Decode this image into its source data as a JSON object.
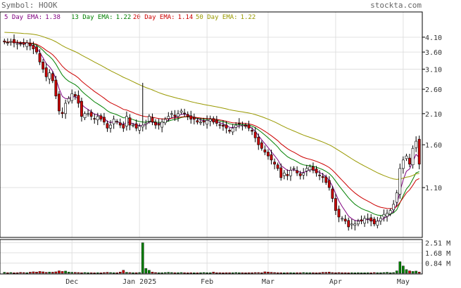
{
  "header": {
    "symbol_label": "Symbol: HOOK",
    "brand": "stockta.com"
  },
  "legend": [
    {
      "label": "5 Day EMA:",
      "value": "1.38",
      "color": "#800080"
    },
    {
      "label": "13 Day EMA:",
      "value": "1.22",
      "color": "#008000"
    },
    {
      "label": "20 Day EMA:",
      "value": "1.14",
      "color": "#cc0000"
    },
    {
      "label": "50 Day EMA:",
      "value": "1.22",
      "color": "#999900"
    }
  ],
  "colors": {
    "up_candle": "#ffffff",
    "down_candle": "#cc0000",
    "candle_outline": "#000000",
    "volume_up": "#008000",
    "volume_down": "#cc0000",
    "grid": "#e0e0e0",
    "border": "#000000"
  },
  "chart_data": {
    "type": "candlestick",
    "price_axis": {
      "scale": "log",
      "ticks": [
        4.1,
        3.6,
        3.1,
        2.6,
        2.1,
        1.6,
        1.1
      ],
      "tick_labels": [
        "4.10",
        "3.60",
        "3.10",
        "2.60",
        "2.10",
        "1.60",
        "1.10"
      ],
      "range": [
        0.72,
        4.55
      ]
    },
    "volume_axis": {
      "ticks": [
        2.51,
        1.68,
        0.84
      ],
      "tick_labels": [
        "2.51 M",
        "1.68 M",
        "0.84 M"
      ],
      "range": [
        0,
        2.6
      ]
    },
    "x_labels": [
      {
        "label": "Dec",
        "index": 21
      },
      {
        "label": "Jan 2025",
        "index": 42
      },
      {
        "label": "Feb",
        "index": 63
      },
      {
        "label": "Mar",
        "index": 82
      },
      {
        "label": "Apr",
        "index": 103
      },
      {
        "label": "May",
        "index": 124
      }
    ],
    "num_days": 130,
    "closes": [
      3.93,
      3.91,
      3.95,
      3.9,
      3.88,
      3.86,
      3.85,
      3.9,
      3.8,
      3.7,
      3.6,
      3.3,
      3.1,
      2.9,
      3.0,
      2.8,
      2.45,
      2.15,
      2.1,
      2.3,
      2.4,
      2.5,
      2.45,
      2.3,
      2.05,
      2.1,
      2.1,
      2.05,
      2.0,
      2.05,
      2.0,
      1.95,
      1.85,
      1.9,
      2.0,
      1.95,
      1.9,
      1.85,
      2.05,
      1.9,
      1.9,
      1.85,
      1.88,
      1.9,
      1.93,
      2.05,
      1.95,
      1.9,
      1.9,
      1.95,
      2.0,
      2.05,
      2.1,
      2.05,
      2.1,
      2.15,
      2.1,
      2.05,
      2.0,
      2.0,
      1.95,
      1.95,
      1.95,
      1.98,
      2.0,
      1.95,
      1.93,
      1.9,
      1.88,
      1.85,
      1.8,
      1.85,
      1.9,
      1.92,
      1.9,
      1.88,
      1.85,
      1.8,
      1.7,
      1.6,
      1.55,
      1.5,
      1.45,
      1.4,
      1.35,
      1.3,
      1.2,
      1.25,
      1.22,
      1.28,
      1.3,
      1.25,
      1.22,
      1.25,
      1.3,
      1.32,
      1.28,
      1.25,
      1.22,
      1.2,
      1.15,
      1.1,
      1.0,
      0.9,
      0.85,
      0.84,
      0.82,
      0.78,
      0.8,
      0.8,
      0.82,
      0.82,
      0.84,
      0.84,
      0.82,
      0.8,
      0.82,
      0.84,
      0.87,
      0.88,
      0.9,
      0.95,
      1.05,
      1.3,
      1.4,
      1.45,
      1.35,
      1.55,
      1.65,
      1.35
    ],
    "ema5_last": 1.38,
    "ema13_last": 1.22,
    "ema20_last": 1.14,
    "ema50_last": 1.22,
    "volumes": [
      0.08,
      0.05,
      0.06,
      0.04,
      0.05,
      0.07,
      0.06,
      0.05,
      0.09,
      0.12,
      0.1,
      0.15,
      0.12,
      0.08,
      0.1,
      0.09,
      0.12,
      0.2,
      0.15,
      0.18,
      0.1,
      0.08,
      0.07,
      0.06,
      0.05,
      0.06,
      0.05,
      0.05,
      0.04,
      0.05,
      0.04,
      0.06,
      0.08,
      0.06,
      0.05,
      0.05,
      0.1,
      0.25,
      0.08,
      0.06,
      0.05,
      0.05,
      0.06,
      2.51,
      0.4,
      0.25,
      0.1,
      0.06,
      0.05,
      0.05,
      0.06,
      0.08,
      0.06,
      0.05,
      0.05,
      0.06,
      0.05,
      0.04,
      0.05,
      0.04,
      0.04,
      0.05,
      0.06,
      0.05,
      0.05,
      0.1,
      0.05,
      0.05,
      0.04,
      0.05,
      0.05,
      0.05,
      0.06,
      0.05,
      0.05,
      0.04,
      0.05,
      0.05,
      0.06,
      0.06,
      0.05,
      0.12,
      0.1,
      0.08,
      0.06,
      0.05,
      0.05,
      0.04,
      0.05,
      0.05,
      0.04,
      0.05,
      0.05,
      0.06,
      0.05,
      0.05,
      0.05,
      0.04,
      0.05,
      0.08,
      0.08,
      0.1,
      0.06,
      0.05,
      0.06,
      0.05,
      0.05,
      0.04,
      0.05,
      0.04,
      0.05,
      0.04,
      0.04,
      0.05,
      0.04,
      0.06,
      0.05,
      0.05,
      0.06,
      0.08,
      0.05,
      0.06,
      0.2,
      0.95,
      0.6,
      0.3,
      0.2,
      0.15,
      0.18,
      0.1
    ]
  }
}
